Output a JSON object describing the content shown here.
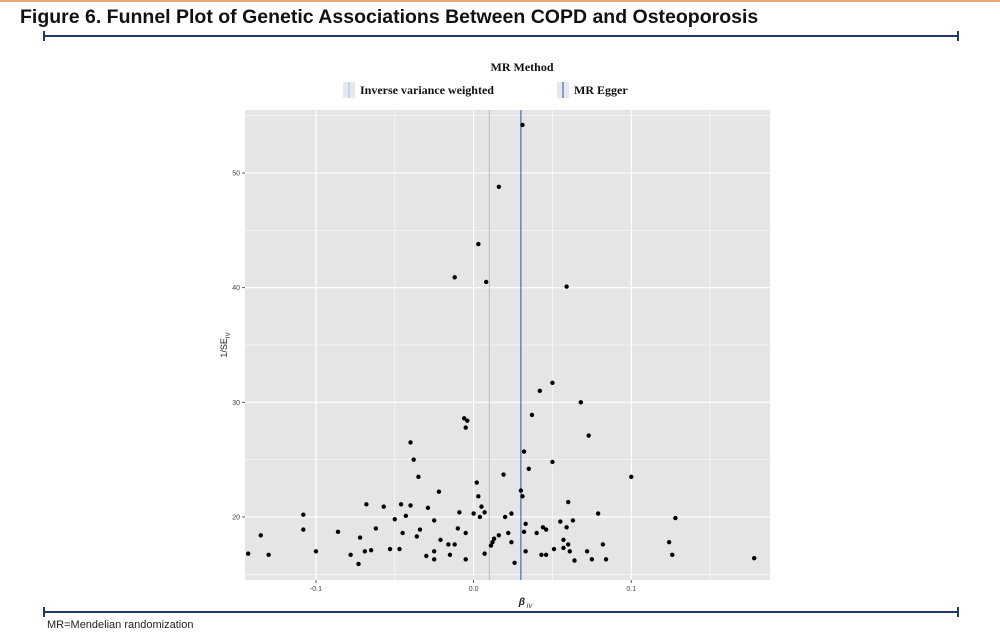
{
  "figure": {
    "title": "Figure 6. Funnel Plot of Genetic Associations Between COPD and Osteoporosis",
    "footnote": "MR=Mendelian randomization"
  },
  "colors": {
    "title_border": "#e8a774",
    "rule": "#1f3864",
    "panel": "#e5e5e5",
    "grid": "#ffffff",
    "ivw_line": "#9ec4de",
    "egger_line": "#1f5a96",
    "point": "#000000"
  },
  "chart_data": {
    "type": "scatter",
    "title": "",
    "xlabel": "β_IV",
    "ylabel": "1/SE_IV",
    "xlim": [
      -0.145,
      0.188
    ],
    "ylim": [
      14.5,
      55.5
    ],
    "x_ticks": [
      -0.1,
      0.0,
      0.1
    ],
    "x_tick_labels": [
      "-0.1",
      "0.0",
      "0.1"
    ],
    "y_ticks": [
      20,
      30,
      40,
      50
    ],
    "y_tick_labels": [
      "20",
      "30",
      "40",
      "50"
    ],
    "grid": true,
    "legend": {
      "title": "MR Method",
      "position": "top",
      "entries": [
        "Inverse variance weighted",
        "MR Egger"
      ]
    },
    "vlines": [
      {
        "name": "Inverse variance weighted",
        "x": 0.01
      },
      {
        "name": "MR Egger",
        "x": 0.03
      }
    ],
    "points": [
      [
        0.031,
        54.2
      ],
      [
        0.016,
        48.8
      ],
      [
        0.003,
        43.8
      ],
      [
        -0.012,
        40.9
      ],
      [
        0.008,
        40.5
      ],
      [
        0.059,
        40.1
      ],
      [
        0.05,
        31.7
      ],
      [
        0.042,
        31.0
      ],
      [
        0.068,
        30.0
      ],
      [
        0.037,
        28.9
      ],
      [
        -0.006,
        28.6
      ],
      [
        -0.004,
        28.4
      ],
      [
        -0.005,
        27.8
      ],
      [
        0.073,
        27.1
      ],
      [
        -0.04,
        26.5
      ],
      [
        0.032,
        25.7
      ],
      [
        -0.038,
        25.0
      ],
      [
        0.05,
        24.8
      ],
      [
        0.035,
        24.2
      ],
      [
        0.019,
        23.7
      ],
      [
        -0.035,
        23.5
      ],
      [
        0.1,
        23.5
      ],
      [
        0.002,
        23.0
      ],
      [
        0.03,
        22.3
      ],
      [
        0.031,
        21.8
      ],
      [
        -0.022,
        22.2
      ],
      [
        0.003,
        21.8
      ],
      [
        0.06,
        21.3
      ],
      [
        -0.046,
        21.1
      ],
      [
        -0.068,
        21.1
      ],
      [
        -0.04,
        21.0
      ],
      [
        -0.057,
        20.9
      ],
      [
        0.005,
        20.9
      ],
      [
        -0.029,
        20.8
      ],
      [
        0.007,
        20.4
      ],
      [
        -0.009,
        20.4
      ],
      [
        -0.108,
        20.2
      ],
      [
        0.0,
        20.3
      ],
      [
        0.024,
        20.3
      ],
      [
        0.079,
        20.3
      ],
      [
        -0.043,
        20.1
      ],
      [
        0.004,
        20.0
      ],
      [
        0.02,
        20.0
      ],
      [
        0.128,
        19.9
      ],
      [
        -0.05,
        19.8
      ],
      [
        0.055,
        19.6
      ],
      [
        0.063,
        19.7
      ],
      [
        0.059,
        19.1
      ],
      [
        -0.025,
        19.7
      ],
      [
        0.033,
        19.4
      ],
      [
        0.044,
        19.1
      ],
      [
        -0.108,
        18.9
      ],
      [
        -0.034,
        18.9
      ],
      [
        -0.062,
        19.0
      ],
      [
        -0.01,
        19.0
      ],
      [
        0.046,
        18.9
      ],
      [
        -0.086,
        18.7
      ],
      [
        -0.045,
        18.6
      ],
      [
        -0.005,
        18.6
      ],
      [
        0.022,
        18.6
      ],
      [
        0.032,
        18.7
      ],
      [
        0.04,
        18.6
      ],
      [
        -0.036,
        18.3
      ],
      [
        -0.072,
        18.2
      ],
      [
        0.016,
        18.4
      ],
      [
        -0.135,
        18.4
      ],
      [
        0.013,
        18.1
      ],
      [
        -0.021,
        18.0
      ],
      [
        0.057,
        18.0
      ],
      [
        0.024,
        17.8
      ],
      [
        0.082,
        17.6
      ],
      [
        0.012,
        17.8
      ],
      [
        0.011,
        17.5
      ],
      [
        0.124,
        17.8
      ],
      [
        -0.012,
        17.6
      ],
      [
        -0.016,
        17.6
      ],
      [
        0.051,
        17.2
      ],
      [
        0.057,
        17.3
      ],
      [
        0.06,
        17.6
      ],
      [
        -0.047,
        17.2
      ],
      [
        -0.053,
        17.2
      ],
      [
        -0.065,
        17.1
      ],
      [
        -0.069,
        17.0
      ],
      [
        -0.1,
        17.0
      ],
      [
        -0.025,
        17.0
      ],
      [
        0.061,
        17.0
      ],
      [
        0.033,
        17.0
      ],
      [
        0.072,
        17.0
      ],
      [
        -0.143,
        16.8
      ],
      [
        -0.13,
        16.7
      ],
      [
        -0.078,
        16.7
      ],
      [
        -0.015,
        16.7
      ],
      [
        0.007,
        16.8
      ],
      [
        0.043,
        16.7
      ],
      [
        0.046,
        16.7
      ],
      [
        0.126,
        16.7
      ],
      [
        -0.03,
        16.6
      ],
      [
        -0.025,
        16.3
      ],
      [
        -0.005,
        16.3
      ],
      [
        0.064,
        16.2
      ],
      [
        0.075,
        16.3
      ],
      [
        0.084,
        16.3
      ],
      [
        0.178,
        16.4
      ],
      [
        0.026,
        16.0
      ],
      [
        -0.073,
        15.9
      ]
    ]
  }
}
